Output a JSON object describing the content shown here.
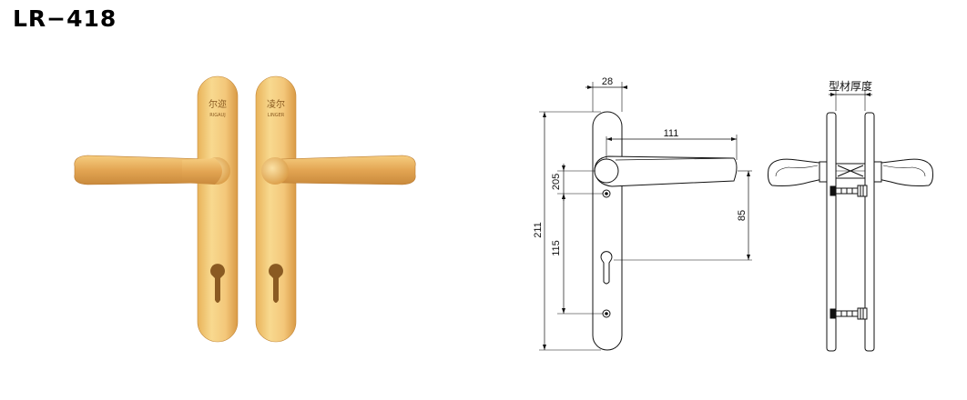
{
  "title": "LR−418",
  "photo": {
    "left_plate": {
      "brand_cn": "尔迩",
      "brand_en": "RIGAUJ"
    },
    "right_plate": {
      "brand_cn": "凌尔",
      "brand_en": "LINGER"
    }
  },
  "drawing": {
    "width_label": "28",
    "handle_length_label": "111",
    "handle_offset_label": "205",
    "overall_height_label": "211",
    "screw_spacing_label": "115",
    "centre_distance_label": "85"
  },
  "side_view": {
    "thickness_label": "型材厚度"
  }
}
